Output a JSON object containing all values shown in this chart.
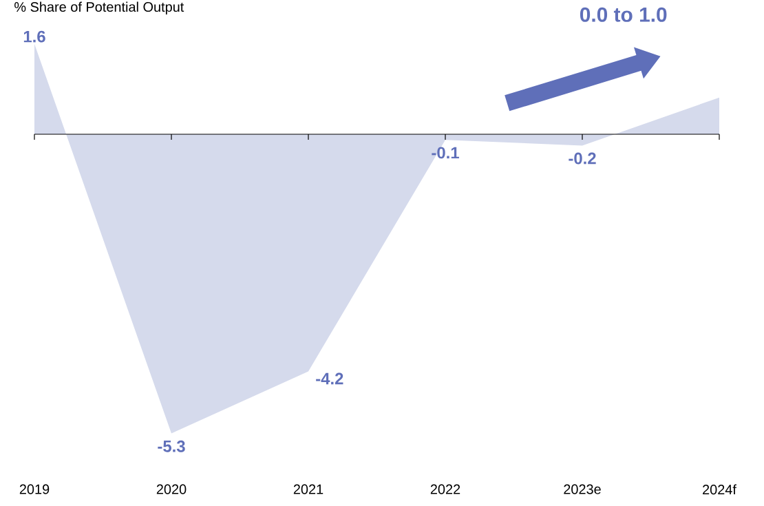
{
  "chart_data": {
    "type": "area",
    "title": "% Share of Potential Output",
    "categories": [
      "2019",
      "2020",
      "2021",
      "2022",
      "2023e",
      "2024f"
    ],
    "values": [
      1.6,
      -5.3,
      -4.2,
      -0.1,
      -0.2,
      0.65
    ],
    "value_labels": [
      "1.6",
      "-5.3",
      "-4.2",
      "-0.1",
      "-0.2",
      null
    ],
    "color": "#d5daec",
    "annotations": [
      "0.0 to 1.0"
    ]
  }
}
